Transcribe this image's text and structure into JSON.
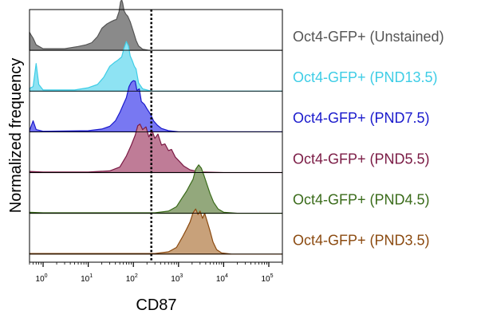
{
  "chart_data": {
    "type": "area",
    "xlabel": "CD87",
    "ylabel": "Normalized frequency",
    "xscale": "log",
    "xlim": [
      0.5,
      200000
    ],
    "xticks": [
      {
        "base": "10",
        "exp": "0",
        "value": 1
      },
      {
        "base": "10",
        "exp": "1",
        "value": 10
      },
      {
        "base": "10",
        "exp": "2",
        "value": 100
      },
      {
        "base": "10",
        "exp": "3",
        "value": 1000
      },
      {
        "base": "10",
        "exp": "4",
        "value": 10000
      },
      {
        "base": "10",
        "exp": "5",
        "value": 100000
      }
    ],
    "threshold_x": 250,
    "threshold_style": "dotted",
    "layout": "stacked ridgeline, one lane per sample",
    "series": [
      {
        "name": "Oct4-GFP+ (Unstained)",
        "color": "#555555",
        "fill": "#8a8a8a",
        "points": [
          [
            0.5,
            0.33
          ],
          [
            0.55,
            0.27
          ],
          [
            0.6,
            0.22
          ],
          [
            0.7,
            0.1
          ],
          [
            1,
            0.03
          ],
          [
            3,
            0.03
          ],
          [
            6,
            0.07
          ],
          [
            9,
            0.1
          ],
          [
            12,
            0.14
          ],
          [
            16,
            0.25
          ],
          [
            20,
            0.4
          ],
          [
            26,
            0.48
          ],
          [
            32,
            0.52
          ],
          [
            38,
            0.55
          ],
          [
            42,
            0.56
          ],
          [
            48,
            0.7
          ],
          [
            52,
            0.88
          ],
          [
            55,
            0.92
          ],
          [
            58,
            0.86
          ],
          [
            62,
            0.72
          ],
          [
            68,
            0.66
          ],
          [
            75,
            0.62
          ],
          [
            85,
            0.52
          ],
          [
            100,
            0.34
          ],
          [
            115,
            0.18
          ],
          [
            130,
            0.08
          ],
          [
            160,
            0.02
          ],
          [
            220,
            0
          ],
          [
            200000,
            0
          ]
        ]
      },
      {
        "name": "Oct4-GFP+ (PND13.5)",
        "color": "#3ecde6",
        "fill": "#8ee3f3",
        "points": [
          [
            0.5,
            0.05
          ],
          [
            0.6,
            0.08
          ],
          [
            0.7,
            0.5
          ],
          [
            0.8,
            0.12
          ],
          [
            1,
            0.02
          ],
          [
            5,
            0.02
          ],
          [
            10,
            0.06
          ],
          [
            16,
            0.12
          ],
          [
            22,
            0.25
          ],
          [
            30,
            0.45
          ],
          [
            38,
            0.52
          ],
          [
            45,
            0.56
          ],
          [
            55,
            0.62
          ],
          [
            62,
            0.78
          ],
          [
            70,
            0.9
          ],
          [
            78,
            0.82
          ],
          [
            85,
            0.64
          ],
          [
            95,
            0.55
          ],
          [
            105,
            0.45
          ],
          [
            115,
            0.4
          ],
          [
            130,
            0.15
          ],
          [
            160,
            0.04
          ],
          [
            250,
            0
          ],
          [
            200000,
            0
          ]
        ]
      },
      {
        "name": "Oct4-GFP+ (PND7.5)",
        "color": "#1a1acc",
        "fill": "#7878f2",
        "points": [
          [
            0.5,
            0.02
          ],
          [
            0.6,
            0.2
          ],
          [
            0.7,
            0.04
          ],
          [
            1,
            0.01
          ],
          [
            10,
            0.02
          ],
          [
            20,
            0.05
          ],
          [
            30,
            0.1
          ],
          [
            40,
            0.2
          ],
          [
            50,
            0.35
          ],
          [
            60,
            0.5
          ],
          [
            70,
            0.62
          ],
          [
            80,
            0.82
          ],
          [
            90,
            0.9
          ],
          [
            100,
            0.93
          ],
          [
            110,
            0.92
          ],
          [
            120,
            0.75
          ],
          [
            135,
            0.78
          ],
          [
            150,
            0.55
          ],
          [
            175,
            0.5
          ],
          [
            200,
            0.42
          ],
          [
            240,
            0.32
          ],
          [
            280,
            0.2
          ],
          [
            340,
            0.12
          ],
          [
            420,
            0.06
          ],
          [
            600,
            0.02
          ],
          [
            1000,
            0
          ],
          [
            200000,
            0
          ]
        ]
      },
      {
        "name": "Oct4-GFP+ (PND5.5)",
        "color": "#7a1a44",
        "fill": "#bf7c97",
        "points": [
          [
            0.5,
            0.02
          ],
          [
            1,
            0.01
          ],
          [
            10,
            0.01
          ],
          [
            30,
            0.03
          ],
          [
            50,
            0.1
          ],
          [
            70,
            0.3
          ],
          [
            90,
            0.5
          ],
          [
            110,
            0.68
          ],
          [
            125,
            0.85
          ],
          [
            140,
            0.88
          ],
          [
            160,
            0.78
          ],
          [
            190,
            0.83
          ],
          [
            220,
            0.65
          ],
          [
            260,
            0.76
          ],
          [
            300,
            0.62
          ],
          [
            350,
            0.7
          ],
          [
            420,
            0.5
          ],
          [
            500,
            0.52
          ],
          [
            600,
            0.4
          ],
          [
            700,
            0.42
          ],
          [
            850,
            0.28
          ],
          [
            1000,
            0.22
          ],
          [
            1300,
            0.12
          ],
          [
            1800,
            0.05
          ],
          [
            3000,
            0.01
          ],
          [
            10000,
            0
          ],
          [
            200000,
            0
          ]
        ]
      },
      {
        "name": "Oct4-GFP+ (PND4.5)",
        "color": "#3a6b1a",
        "fill": "#93a87c",
        "points": [
          [
            0.5,
            0.02
          ],
          [
            1,
            0.01
          ],
          [
            100,
            0.01
          ],
          [
            300,
            0.01
          ],
          [
            600,
            0.04
          ],
          [
            900,
            0.12
          ],
          [
            1200,
            0.28
          ],
          [
            1500,
            0.4
          ],
          [
            1800,
            0.52
          ],
          [
            2100,
            0.62
          ],
          [
            2400,
            0.8
          ],
          [
            2800,
            0.88
          ],
          [
            3200,
            0.82
          ],
          [
            3700,
            0.68
          ],
          [
            4300,
            0.52
          ],
          [
            5000,
            0.36
          ],
          [
            6000,
            0.2
          ],
          [
            7500,
            0.08
          ],
          [
            10000,
            0.02
          ],
          [
            20000,
            0
          ],
          [
            200000,
            0
          ]
        ]
      },
      {
        "name": "Oct4-GFP+ (PND3.5)",
        "color": "#8b4a10",
        "fill": "#c8a17a",
        "points": [
          [
            0.5,
            0.01
          ],
          [
            100,
            0.01
          ],
          [
            300,
            0.01
          ],
          [
            600,
            0.04
          ],
          [
            900,
            0.12
          ],
          [
            1200,
            0.3
          ],
          [
            1500,
            0.45
          ],
          [
            1800,
            0.58
          ],
          [
            2100,
            0.75
          ],
          [
            2400,
            0.82
          ],
          [
            2700,
            0.72
          ],
          [
            3000,
            0.78
          ],
          [
            3400,
            0.65
          ],
          [
            3800,
            0.74
          ],
          [
            4300,
            0.6
          ],
          [
            5000,
            0.42
          ],
          [
            5800,
            0.22
          ],
          [
            7000,
            0.08
          ],
          [
            9000,
            0.02
          ],
          [
            15000,
            0
          ],
          [
            200000,
            0
          ]
        ]
      }
    ]
  }
}
